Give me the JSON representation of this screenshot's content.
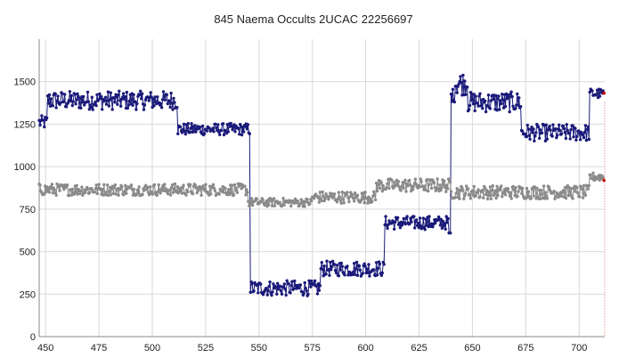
{
  "chart_data": {
    "type": "line",
    "title": "845 Naema Occults 2UCAC 22256697",
    "xlabel": "",
    "ylabel": "",
    "xlim": [
      447,
      712
    ],
    "ylim": [
      0,
      1750
    ],
    "x_ticks": [
      450,
      475,
      500,
      525,
      550,
      575,
      600,
      625,
      650,
      675,
      700
    ],
    "y_ticks": [
      0,
      250,
      500,
      750,
      1000,
      1250,
      1500
    ],
    "grid": true,
    "legend": "none",
    "series": [
      {
        "color": "#1a1a7a",
        "segments": [
          {
            "x_start": 447,
            "x_end": 451,
            "level": 1260,
            "noise": 40
          },
          {
            "x_start": 451,
            "x_end": 512,
            "level": 1390,
            "noise": 55
          },
          {
            "x_start": 512,
            "x_end": 546,
            "level": 1220,
            "noise": 35
          },
          {
            "x_start": 546,
            "x_end": 579,
            "level": 285,
            "noise": 45
          },
          {
            "x_start": 579,
            "x_end": 609,
            "level": 400,
            "noise": 45
          },
          {
            "x_start": 609,
            "x_end": 639,
            "level": 670,
            "noise": 40
          },
          {
            "x_start": 639,
            "x_end": 640,
            "level": 610,
            "noise": 0
          },
          {
            "x_start": 640,
            "x_end": 642,
            "level": 1420,
            "noise": 40
          },
          {
            "x_start": 642,
            "x_end": 648,
            "level": 1490,
            "noise": 70
          },
          {
            "x_start": 648,
            "x_end": 673,
            "level": 1380,
            "noise": 60
          },
          {
            "x_start": 673,
            "x_end": 705,
            "level": 1200,
            "noise": 50
          },
          {
            "x_start": 705,
            "x_end": 712,
            "level": 1430,
            "noise": 30
          }
        ],
        "points_per_unit": 2.5
      },
      {
        "color": "#8a8a8a",
        "segments": [
          {
            "x_start": 447,
            "x_end": 545,
            "level": 865,
            "noise": 35
          },
          {
            "x_start": 545,
            "x_end": 575,
            "level": 790,
            "noise": 25
          },
          {
            "x_start": 575,
            "x_end": 605,
            "level": 820,
            "noise": 35
          },
          {
            "x_start": 605,
            "x_end": 640,
            "level": 890,
            "noise": 40
          },
          {
            "x_start": 640,
            "x_end": 705,
            "level": 850,
            "noise": 40
          },
          {
            "x_start": 705,
            "x_end": 712,
            "level": 940,
            "noise": 25
          }
        ],
        "points_per_unit": 2.5
      }
    ],
    "end_marker_color": "#cc0000"
  }
}
